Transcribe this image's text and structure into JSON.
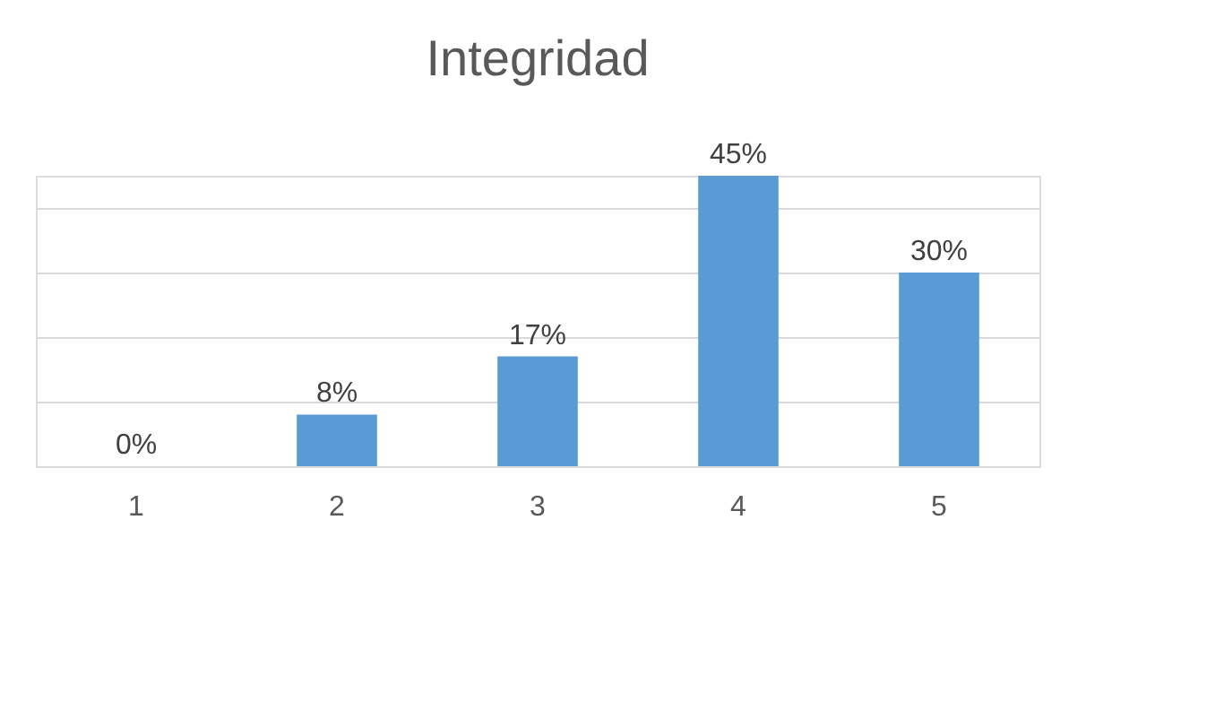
{
  "chart_data": {
    "type": "bar",
    "title": "Integridad",
    "categories": [
      "1",
      "2",
      "3",
      "4",
      "5"
    ],
    "values": [
      0,
      8,
      17,
      45,
      30
    ],
    "value_labels": [
      "0%",
      "8%",
      "17%",
      "45%",
      "30%"
    ],
    "color": "#5b9bd5",
    "grid": "y",
    "tick_labels": "x"
  }
}
